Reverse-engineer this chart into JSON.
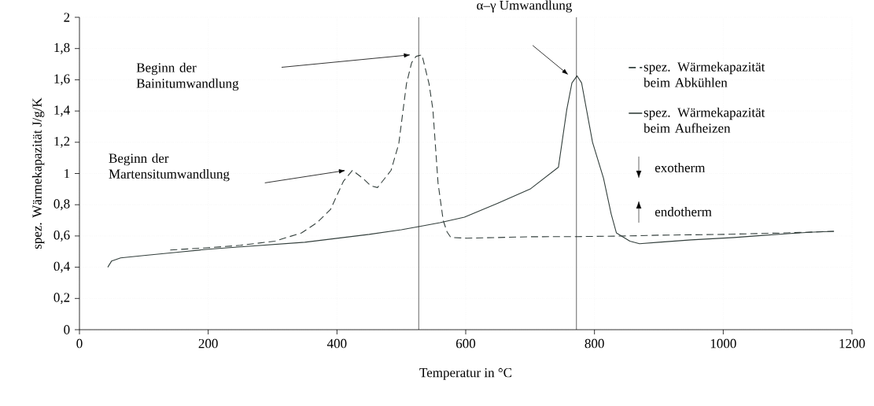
{
  "chart_data": {
    "type": "line",
    "xlabel": "Temperatur in °C",
    "ylabel": "spez. Wärmekapazität J/g/K",
    "series": [
      {
        "name": "spez. Wärmekapazität beim Abkühlen",
        "color": "#333f3c",
        "line_style": "dashed",
        "x": [
          141,
          200,
          250,
          304,
          345,
          369,
          390,
          410,
          424,
          440,
          453,
          463,
          484,
          496,
          508,
          516,
          523,
          532,
          543,
          549,
          557,
          565,
          571,
          577,
          602,
          650,
          700,
          773,
          850,
          900,
          1000,
          1100,
          1172
        ],
        "values": [
          0.51,
          0.525,
          0.54,
          0.567,
          0.62,
          0.685,
          0.77,
          0.95,
          1.02,
          0.97,
          0.92,
          0.91,
          1.02,
          1.19,
          1.575,
          1.71,
          1.75,
          1.76,
          1.575,
          1.41,
          0.94,
          0.7,
          0.626,
          0.59,
          0.586,
          0.59,
          0.595,
          0.596,
          0.6,
          0.605,
          0.61,
          0.62,
          0.63
        ]
      },
      {
        "name": "spez. Wärmekapazität beim Aufheizen",
        "color": "#333f3c",
        "line_style": "solid",
        "x": [
          44,
          50,
          64,
          100,
          150,
          200,
          250,
          300,
          350,
          400,
          450,
          500,
          527,
          560,
          598,
          650,
          700,
          744,
          757,
          765,
          773,
          780,
          797,
          814,
          826,
          834,
          855,
          870,
          900,
          950,
          1017,
          1050,
          1100,
          1140,
          1172
        ],
        "values": [
          0.4,
          0.44,
          0.46,
          0.475,
          0.495,
          0.515,
          0.53,
          0.545,
          0.56,
          0.585,
          0.61,
          0.64,
          0.66,
          0.685,
          0.72,
          0.81,
          0.9,
          1.04,
          1.41,
          1.58,
          1.625,
          1.58,
          1.2,
          0.97,
          0.74,
          0.62,
          0.567,
          0.55,
          0.56,
          0.575,
          0.59,
          0.6,
          0.615,
          0.625,
          0.63
        ]
      }
    ],
    "xlim": [
      0,
      1200
    ],
    "ylim": [
      0,
      2
    ],
    "xticks": [
      0,
      200,
      400,
      600,
      800,
      1000,
      1200
    ],
    "yticks": [
      0,
      {
        "value": 0.2,
        "label": "0,2"
      },
      {
        "value": 0.4,
        "label": "0,4"
      },
      {
        "value": 0.6,
        "label": "0,6"
      },
      {
        "value": 0.8,
        "label": "0,8"
      },
      1,
      {
        "value": 1.2,
        "label": "1,2"
      },
      {
        "value": 1.4,
        "label": "1,4"
      },
      {
        "value": 1.6,
        "label": "1,6"
      },
      {
        "value": 1.8,
        "label": "1,8"
      },
      2
    ],
    "ref_lines": [
      {
        "axis": "x",
        "value": 527,
        "color": "#000000"
      },
      {
        "axis": "x",
        "value": 772,
        "color": "#000000"
      }
    ],
    "annotations": [
      "Beginn der Bainitumwandlung",
      "Beginn der Martensitumwandlung",
      "α–γ Umwandlung",
      "exotherm",
      "endotherm"
    ],
    "grid": true,
    "legend": "top right"
  }
}
